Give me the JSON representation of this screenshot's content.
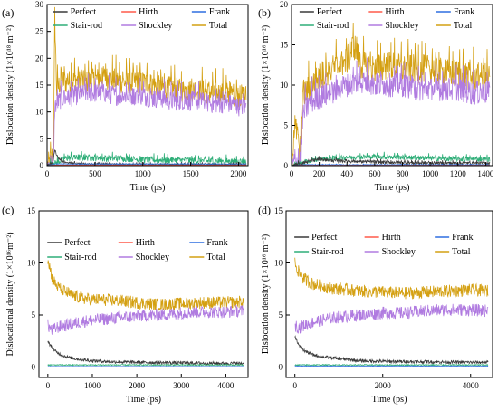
{
  "colors": {
    "Perfect": "#3a3a3a",
    "Hirth": "#ff5a4a",
    "Frank": "#2f6fe0",
    "Stair-rod": "#2fae78",
    "Shockley": "#b07be0",
    "Total": "#d4a012"
  },
  "chart_data": [
    {
      "type": "line",
      "panel": "(a)",
      "xlabel": "Time (ps)",
      "ylabel": "Dislocation density (1×10¹⁸ m⁻²)",
      "xlim": [
        0,
        2100
      ],
      "ylim": [
        0,
        30
      ],
      "xticks": [
        0,
        500,
        1000,
        1500,
        2000
      ],
      "yticks": [
        0,
        5,
        10,
        15,
        20,
        25,
        30
      ],
      "legend": [
        "Perfect",
        "Hirth",
        "Frank",
        "Stair-rod",
        "Shockley",
        "Total"
      ],
      "series": [
        {
          "name": "Total",
          "x": [
            0,
            40,
            70,
            80,
            100,
            150,
            200,
            300,
            400,
            500,
            600,
            700,
            800,
            900,
            1000,
            1100,
            1200,
            1300,
            1400,
            1500,
            1600,
            1700,
            1800,
            1900,
            2000,
            2080
          ],
          "y": [
            0,
            1,
            3,
            28,
            14,
            16,
            15.5,
            16,
            15.5,
            16,
            16.5,
            16,
            15.5,
            15.5,
            15.5,
            15,
            14.5,
            14.5,
            14,
            14,
            14,
            13.5,
            13.5,
            13.5,
            13,
            13
          ]
        },
        {
          "name": "Shockley",
          "x": [
            0,
            40,
            70,
            80,
            100,
            150,
            200,
            300,
            400,
            500,
            600,
            700,
            800,
            900,
            1000,
            1100,
            1200,
            1300,
            1400,
            1500,
            1600,
            1700,
            1800,
            1900,
            2000,
            2080
          ],
          "y": [
            0,
            0.5,
            1,
            11,
            11.5,
            12.5,
            12.5,
            13,
            13.5,
            13.5,
            13.5,
            13,
            13,
            13,
            13,
            12.5,
            12.5,
            12,
            12,
            12,
            12,
            11.5,
            11.5,
            11.5,
            11,
            11
          ]
        },
        {
          "name": "Stair-rod",
          "x": [
            0,
            80,
            200,
            400,
            600,
            800,
            1000,
            1200,
            1400,
            1600,
            1800,
            2000,
            2080
          ],
          "y": [
            0,
            0.4,
            1.4,
            1.5,
            1.3,
            1.3,
            1.1,
            1.0,
            1.0,
            0.9,
            0.8,
            0.8,
            0.8
          ]
        },
        {
          "name": "Perfect",
          "x": [
            0,
            60,
            80,
            110,
            150,
            200,
            400,
            800,
            1200,
            1600,
            2000,
            2080
          ],
          "y": [
            0,
            0.5,
            3,
            1.5,
            0.8,
            0.5,
            0.3,
            0.2,
            0.2,
            0.2,
            0.2,
            0.2
          ]
        },
        {
          "name": "Frank",
          "x": [
            0,
            80,
            2080
          ],
          "y": [
            0,
            0.3,
            0.3
          ]
        },
        {
          "name": "Hirth",
          "x": [
            0,
            80,
            2080
          ],
          "y": [
            0,
            0.1,
            0.1
          ]
        }
      ]
    },
    {
      "type": "line",
      "panel": "(b)",
      "xlabel": "Time (ps)",
      "ylabel": "Dislocation density (1×10¹⁶ m⁻²)",
      "xlim": [
        0,
        1450
      ],
      "ylim": [
        0,
        20
      ],
      "xticks": [
        0,
        200,
        400,
        600,
        800,
        1000,
        1200,
        1400
      ],
      "yticks": [
        0,
        5,
        10,
        15,
        20
      ],
      "legend": [
        "Perfect",
        "Hirth",
        "Frank",
        "Stair-rod",
        "Shockley",
        "Total"
      ],
      "series": [
        {
          "name": "Total",
          "x": [
            0,
            20,
            40,
            60,
            80,
            100,
            150,
            200,
            300,
            400,
            450,
            500,
            600,
            700,
            800,
            900,
            1000,
            1100,
            1200,
            1300,
            1400,
            1430
          ],
          "y": [
            0,
            5,
            4,
            1,
            9,
            9,
            10,
            11,
            12,
            13,
            15,
            12.5,
            12,
            12.5,
            12,
            12,
            12,
            11.5,
            11.5,
            11,
            11,
            11
          ]
        },
        {
          "name": "Shockley",
          "x": [
            0,
            40,
            60,
            80,
            100,
            150,
            200,
            300,
            400,
            500,
            600,
            700,
            800,
            900,
            1000,
            1100,
            1200,
            1300,
            1400,
            1430
          ],
          "y": [
            0,
            0.5,
            0.5,
            6,
            7,
            8,
            8.5,
            9,
            10,
            10.5,
            10,
            10,
            10,
            9.5,
            9.5,
            9.5,
            9.5,
            9,
            9,
            9
          ]
        },
        {
          "name": "Stair-rod",
          "x": [
            0,
            100,
            200,
            400,
            600,
            800,
            1000,
            1200,
            1430
          ],
          "y": [
            0,
            0.4,
            0.8,
            1.0,
            1.1,
            1.0,
            0.9,
            0.8,
            0.8
          ]
        },
        {
          "name": "Perfect",
          "x": [
            0,
            100,
            200,
            300,
            500,
            700,
            1000,
            1430
          ],
          "y": [
            0,
            0.4,
            0.8,
            0.6,
            0.5,
            0.4,
            0.3,
            0.3
          ]
        },
        {
          "name": "Frank",
          "x": [
            0,
            100,
            1430
          ],
          "y": [
            0,
            0.1,
            0.1
          ]
        },
        {
          "name": "Hirth",
          "x": [
            0,
            100,
            1430
          ],
          "y": [
            0,
            0.05,
            0.05
          ]
        }
      ]
    },
    {
      "type": "line",
      "panel": "(c)",
      "xlabel": "Time (ps)",
      "ylabel": "Dislocational density (1×10¹⁶m⁻²)",
      "xlim": [
        -200,
        4500
      ],
      "ylim": [
        -1,
        15
      ],
      "xticks": [
        0,
        1000,
        2000,
        3000,
        4000
      ],
      "yticks": [
        0,
        5,
        10,
        15
      ],
      "legend": [
        "Perfect",
        "Hirth",
        "Frank",
        "Stair-rod",
        "Shockley",
        "Total"
      ],
      "series": [
        {
          "name": "Total",
          "x": [
            0,
            100,
            200,
            400,
            600,
            800,
            1000,
            1500,
            2000,
            2500,
            3000,
            3500,
            4000,
            4400
          ],
          "y": [
            10.5,
            8.5,
            7.8,
            7.2,
            6.8,
            6.6,
            6.5,
            6.4,
            6.2,
            6.0,
            6.1,
            6.2,
            6.2,
            6.3
          ]
        },
        {
          "name": "Shockley",
          "x": [
            0,
            100,
            200,
            400,
            600,
            800,
            1000,
            1500,
            2000,
            2500,
            3000,
            3500,
            4000,
            4400
          ],
          "y": [
            4.0,
            3.5,
            3.8,
            4.0,
            4.2,
            4.4,
            4.5,
            4.7,
            4.9,
            5.0,
            5.2,
            5.3,
            5.3,
            5.4
          ]
        },
        {
          "name": "Perfect",
          "x": [
            0,
            100,
            200,
            400,
            600,
            1000,
            1500,
            2000,
            3000,
            4000,
            4400
          ],
          "y": [
            2.5,
            1.8,
            1.4,
            1.0,
            0.8,
            0.6,
            0.5,
            0.45,
            0.4,
            0.35,
            0.35
          ]
        },
        {
          "name": "Stair-rod",
          "x": [
            0,
            1000,
            2000,
            3000,
            4000,
            4400
          ],
          "y": [
            0.2,
            0.2,
            0.2,
            0.2,
            0.2,
            0.2
          ]
        },
        {
          "name": "Frank",
          "x": [
            0,
            1000,
            2000,
            3000,
            4000,
            4400
          ],
          "y": [
            0.05,
            0.05,
            0.05,
            0.05,
            0.05,
            0.05
          ]
        },
        {
          "name": "Hirth",
          "x": [
            0,
            1000,
            2000,
            3000,
            4000,
            4400
          ],
          "y": [
            0.0,
            0.0,
            0.0,
            0.0,
            0.0,
            0.0
          ]
        }
      ]
    },
    {
      "type": "line",
      "panel": "(d)",
      "xlabel": "Time (ps)",
      "ylabel": "Dislocation density (1×10¹⁶ m⁻²)",
      "xlim": [
        -200,
        4500
      ],
      "ylim": [
        -1,
        15
      ],
      "xticks": [
        0,
        2000,
        4000
      ],
      "yticks": [
        0,
        5,
        10,
        15
      ],
      "legend": [
        "Perfect",
        "Hirth",
        "Frank",
        "Stair-rod",
        "Shockley",
        "Total"
      ],
      "series": [
        {
          "name": "Total",
          "x": [
            0,
            100,
            200,
            400,
            600,
            800,
            1000,
            1500,
            2000,
            2500,
            3000,
            3500,
            4000,
            4400
          ],
          "y": [
            10.0,
            9.0,
            8.5,
            8.0,
            7.8,
            7.6,
            7.5,
            7.3,
            7.2,
            7.1,
            7.2,
            7.3,
            7.4,
            7.3
          ]
        },
        {
          "name": "Shockley",
          "x": [
            0,
            100,
            200,
            400,
            600,
            800,
            1000,
            1500,
            2000,
            2500,
            3000,
            3500,
            4000,
            4400
          ],
          "y": [
            4.0,
            3.8,
            4.0,
            4.3,
            4.5,
            4.7,
            4.8,
            5.0,
            5.2,
            5.2,
            5.4,
            5.5,
            5.5,
            5.4
          ]
        },
        {
          "name": "Perfect",
          "x": [
            0,
            100,
            200,
            400,
            600,
            1000,
            1500,
            2000,
            3000,
            4000,
            4400
          ],
          "y": [
            3.0,
            2.0,
            1.6,
            1.2,
            1.0,
            0.8,
            0.6,
            0.55,
            0.5,
            0.45,
            0.45
          ]
        },
        {
          "name": "Stair-rod",
          "x": [
            0,
            1000,
            2000,
            3000,
            4000,
            4400
          ],
          "y": [
            0.2,
            0.2,
            0.2,
            0.2,
            0.2,
            0.2
          ]
        },
        {
          "name": "Frank",
          "x": [
            0,
            1000,
            2000,
            3000,
            4000,
            4400
          ],
          "y": [
            0.1,
            0.1,
            0.1,
            0.1,
            0.1,
            0.1
          ]
        },
        {
          "name": "Hirth",
          "x": [
            0,
            1000,
            2000,
            3000,
            4000,
            4400
          ],
          "y": [
            0.0,
            0.0,
            0.0,
            0.0,
            0.0,
            0.0
          ]
        }
      ]
    }
  ]
}
